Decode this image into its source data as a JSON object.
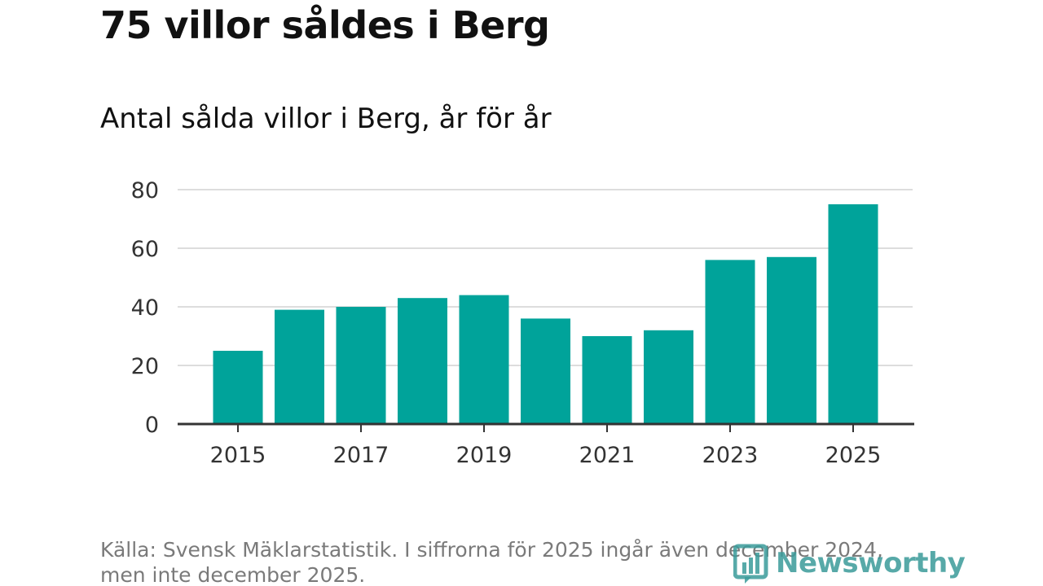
{
  "header": {
    "title": "75 villor såldes i Berg",
    "subtitle": "Antal sålda villor i Berg, år för år"
  },
  "footer": {
    "source_line1": "Källa: Svensk Mäklarstatistik. I siffrorna för 2025 ingår även december 2024,",
    "source_line2": "men inte december 2025.",
    "brand": "Newsworthy"
  },
  "colors": {
    "bar": "#00a39a",
    "grid": "#dddddd",
    "axis": "#333333",
    "brand": "#3a9b9a"
  },
  "icons": {
    "brand_logo": "newsworthy-bar-chart-icon"
  },
  "chart_data": {
    "type": "bar",
    "title": "Antal sålda villor i Berg, år för år",
    "xlabel": "",
    "ylabel": "",
    "categories": [
      "2015",
      "2016",
      "2017",
      "2018",
      "2019",
      "2020",
      "2021",
      "2022",
      "2023",
      "2024",
      "2025"
    ],
    "values": [
      25,
      39,
      40,
      43,
      44,
      36,
      30,
      32,
      56,
      57,
      75
    ],
    "ylim": [
      0,
      80
    ],
    "yticks": [
      0,
      20,
      40,
      60,
      80
    ],
    "xtick_labels": [
      "2015",
      "2017",
      "2019",
      "2021",
      "2023",
      "2025"
    ],
    "grid": true,
    "legend": "none"
  }
}
